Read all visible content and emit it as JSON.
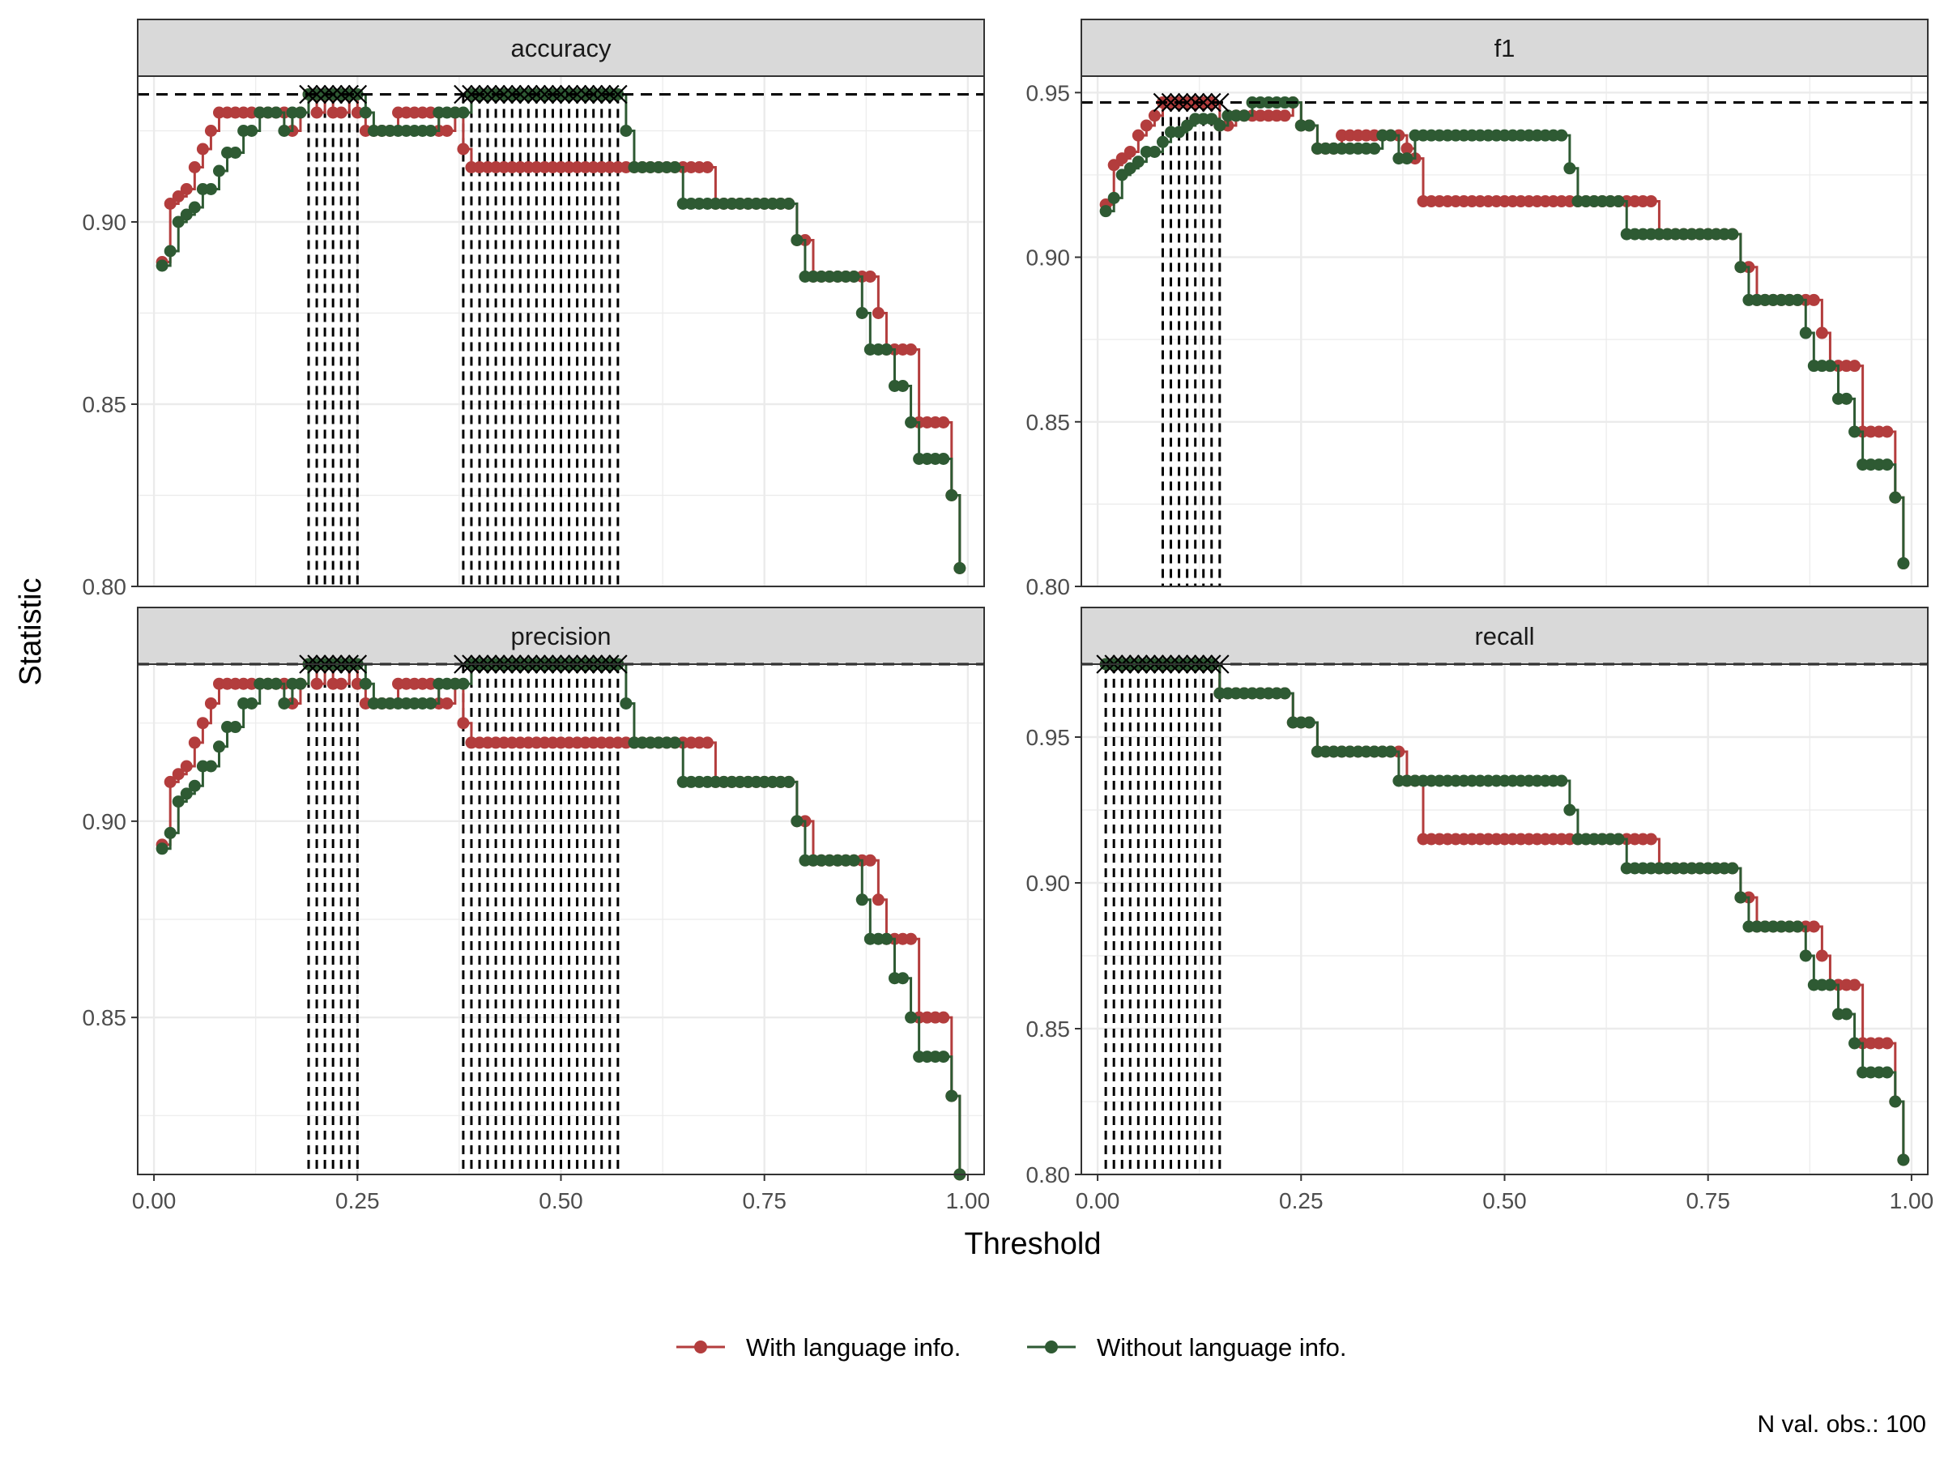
{
  "chart_data": {
    "type": "line",
    "xlabel": "Threshold",
    "ylabel": "Statistic",
    "caption": "N val. obs.: 100",
    "legend_position": "bottom",
    "x_ticks": [
      "0.00",
      "0.25",
      "0.50",
      "0.75",
      "1.00"
    ],
    "x_tick_values": [
      0,
      0.25,
      0.5,
      0.75,
      1.0
    ],
    "xlim": [
      -0.02,
      1.02
    ],
    "colors": {
      "With language info.": "#b33d3d",
      "Without language info.": "#2e5a33",
      "reference": "#000000",
      "strip": "#d9d9d9",
      "grid": "#ebebeb"
    },
    "series_names": [
      "With language info.",
      "Without language info."
    ],
    "panels": [
      {
        "name": "accuracy",
        "ylim": [
          0.8,
          0.94
        ],
        "y_ticks": [
          "0.80",
          "0.85",
          "0.90"
        ],
        "y_tick_values": [
          0.8,
          0.85,
          0.9
        ],
        "max_line": 0.935,
        "optimal_thresholds": [
          [
            0.19,
            0.25
          ],
          [
            0.38,
            0.57
          ]
        ],
        "series": [
          {
            "name": "With language info.",
            "segments": [
              [
                0.01,
                0.889
              ],
              [
                0.02,
                0.905
              ],
              [
                0.03,
                0.907
              ],
              [
                0.04,
                0.909
              ],
              [
                0.05,
                0.915
              ],
              [
                0.06,
                0.92
              ],
              [
                0.07,
                0.925
              ],
              [
                0.08,
                0.93
              ],
              [
                0.17,
                0.925
              ],
              [
                0.18,
                0.93
              ],
              [
                0.19,
                0.935
              ],
              [
                0.2,
                0.93
              ],
              [
                0.21,
                0.935
              ],
              [
                0.22,
                0.93
              ],
              [
                0.24,
                0.935
              ],
              [
                0.25,
                0.93
              ],
              [
                0.26,
                0.925
              ],
              [
                0.3,
                0.93
              ],
              [
                0.35,
                0.925
              ],
              [
                0.37,
                0.93
              ],
              [
                0.38,
                0.92
              ],
              [
                0.39,
                0.915
              ],
              [
                0.69,
                0.905
              ],
              [
                0.79,
                0.895
              ],
              [
                0.81,
                0.885
              ],
              [
                0.89,
                0.875
              ],
              [
                0.9,
                0.865
              ],
              [
                0.94,
                0.845
              ],
              [
                0.98,
                0.825
              ],
              [
                0.99,
                0.805
              ]
            ]
          },
          {
            "name": "Without language info.",
            "segments": [
              [
                0.01,
                0.888
              ],
              [
                0.02,
                0.892
              ],
              [
                0.03,
                0.9
              ],
              [
                0.04,
                0.902
              ],
              [
                0.05,
                0.904
              ],
              [
                0.06,
                0.909
              ],
              [
                0.08,
                0.914
              ],
              [
                0.09,
                0.919
              ],
              [
                0.11,
                0.925
              ],
              [
                0.13,
                0.93
              ],
              [
                0.16,
                0.925
              ],
              [
                0.17,
                0.93
              ],
              [
                0.19,
                0.935
              ],
              [
                0.26,
                0.93
              ],
              [
                0.27,
                0.925
              ],
              [
                0.35,
                0.93
              ],
              [
                0.39,
                0.935
              ],
              [
                0.58,
                0.925
              ],
              [
                0.59,
                0.915
              ],
              [
                0.65,
                0.905
              ],
              [
                0.79,
                0.895
              ],
              [
                0.8,
                0.885
              ],
              [
                0.87,
                0.875
              ],
              [
                0.88,
                0.865
              ],
              [
                0.91,
                0.855
              ],
              [
                0.93,
                0.845
              ],
              [
                0.94,
                0.835
              ],
              [
                0.98,
                0.825
              ],
              [
                0.99,
                0.805
              ]
            ]
          }
        ]
      },
      {
        "name": "f1",
        "ylim": [
          0.8,
          0.955
        ],
        "y_ticks": [
          "0.80",
          "0.85",
          "0.90",
          "0.95"
        ],
        "y_tick_values": [
          0.8,
          0.85,
          0.9,
          0.95
        ],
        "max_line": 0.947,
        "optimal_thresholds": [
          [
            0.08,
            0.15
          ]
        ],
        "series": [
          {
            "name": "With language info.",
            "segments": [
              [
                0.01,
                0.916
              ],
              [
                0.02,
                0.928
              ],
              [
                0.03,
                0.93
              ],
              [
                0.04,
                0.932
              ],
              [
                0.05,
                0.937
              ],
              [
                0.06,
                0.94
              ],
              [
                0.07,
                0.943
              ],
              [
                0.08,
                0.947
              ],
              [
                0.15,
                0.94
              ],
              [
                0.17,
                0.943
              ],
              [
                0.24,
                0.947
              ],
              [
                0.25,
                0.94
              ],
              [
                0.27,
                0.933
              ],
              [
                0.3,
                0.937
              ],
              [
                0.38,
                0.933
              ],
              [
                0.39,
                0.93
              ],
              [
                0.4,
                0.917
              ],
              [
                0.69,
                0.907
              ],
              [
                0.79,
                0.897
              ],
              [
                0.81,
                0.887
              ],
              [
                0.89,
                0.877
              ],
              [
                0.9,
                0.867
              ],
              [
                0.94,
                0.847
              ],
              [
                0.98,
                0.827
              ],
              [
                0.99,
                0.807
              ]
            ]
          },
          {
            "name": "Without language info.",
            "segments": [
              [
                0.01,
                0.914
              ],
              [
                0.02,
                0.918
              ],
              [
                0.03,
                0.925
              ],
              [
                0.04,
                0.927
              ],
              [
                0.05,
                0.929
              ],
              [
                0.06,
                0.932
              ],
              [
                0.08,
                0.935
              ],
              [
                0.09,
                0.938
              ],
              [
                0.11,
                0.94
              ],
              [
                0.12,
                0.942
              ],
              [
                0.15,
                0.94
              ],
              [
                0.16,
                0.943
              ],
              [
                0.19,
                0.947
              ],
              [
                0.25,
                0.94
              ],
              [
                0.27,
                0.933
              ],
              [
                0.35,
                0.937
              ],
              [
                0.37,
                0.93
              ],
              [
                0.39,
                0.937
              ],
              [
                0.58,
                0.927
              ],
              [
                0.59,
                0.917
              ],
              [
                0.65,
                0.907
              ],
              [
                0.79,
                0.897
              ],
              [
                0.8,
                0.887
              ],
              [
                0.87,
                0.877
              ],
              [
                0.88,
                0.867
              ],
              [
                0.91,
                0.857
              ],
              [
                0.93,
                0.847
              ],
              [
                0.94,
                0.837
              ],
              [
                0.98,
                0.827
              ],
              [
                0.99,
                0.807
              ]
            ]
          }
        ]
      },
      {
        "name": "precision",
        "ylim": [
          0.81,
          0.94
        ],
        "y_ticks": [
          "0.85",
          "0.90"
        ],
        "y_tick_values": [
          0.85,
          0.9
        ],
        "max_line": 0.94,
        "optimal_thresholds": [
          [
            0.19,
            0.25
          ],
          [
            0.38,
            0.57
          ]
        ],
        "series": [
          {
            "name": "With language info.",
            "segments": [
              [
                0.01,
                0.894
              ],
              [
                0.02,
                0.91
              ],
              [
                0.03,
                0.912
              ],
              [
                0.04,
                0.914
              ],
              [
                0.05,
                0.92
              ],
              [
                0.06,
                0.925
              ],
              [
                0.07,
                0.93
              ],
              [
                0.08,
                0.935
              ],
              [
                0.17,
                0.93
              ],
              [
                0.18,
                0.935
              ],
              [
                0.19,
                0.94
              ],
              [
                0.2,
                0.935
              ],
              [
                0.21,
                0.94
              ],
              [
                0.22,
                0.935
              ],
              [
                0.24,
                0.94
              ],
              [
                0.25,
                0.935
              ],
              [
                0.26,
                0.93
              ],
              [
                0.3,
                0.935
              ],
              [
                0.35,
                0.93
              ],
              [
                0.37,
                0.935
              ],
              [
                0.38,
                0.925
              ],
              [
                0.39,
                0.92
              ],
              [
                0.69,
                0.91
              ],
              [
                0.79,
                0.9
              ],
              [
                0.81,
                0.89
              ],
              [
                0.89,
                0.88
              ],
              [
                0.9,
                0.87
              ],
              [
                0.94,
                0.85
              ],
              [
                0.98,
                0.83
              ],
              [
                0.99,
                0.81
              ]
            ]
          },
          {
            "name": "Without language info.",
            "segments": [
              [
                0.01,
                0.893
              ],
              [
                0.02,
                0.897
              ],
              [
                0.03,
                0.905
              ],
              [
                0.04,
                0.907
              ],
              [
                0.05,
                0.909
              ],
              [
                0.06,
                0.914
              ],
              [
                0.08,
                0.919
              ],
              [
                0.09,
                0.924
              ],
              [
                0.11,
                0.93
              ],
              [
                0.13,
                0.935
              ],
              [
                0.16,
                0.93
              ],
              [
                0.17,
                0.935
              ],
              [
                0.19,
                0.94
              ],
              [
                0.26,
                0.935
              ],
              [
                0.27,
                0.93
              ],
              [
                0.35,
                0.935
              ],
              [
                0.39,
                0.94
              ],
              [
                0.58,
                0.93
              ],
              [
                0.59,
                0.92
              ],
              [
                0.65,
                0.91
              ],
              [
                0.79,
                0.9
              ],
              [
                0.8,
                0.89
              ],
              [
                0.87,
                0.88
              ],
              [
                0.88,
                0.87
              ],
              [
                0.91,
                0.86
              ],
              [
                0.93,
                0.85
              ],
              [
                0.94,
                0.84
              ],
              [
                0.98,
                0.83
              ],
              [
                0.99,
                0.81
              ]
            ]
          }
        ]
      },
      {
        "name": "recall",
        "ylim": [
          0.8,
          0.975
        ],
        "y_ticks": [
          "0.80",
          "0.85",
          "0.90",
          "0.95"
        ],
        "y_tick_values": [
          0.8,
          0.85,
          0.9,
          0.95
        ],
        "max_line": 0.975,
        "optimal_thresholds": [
          [
            0.01,
            0.15
          ]
        ],
        "series": [
          {
            "name": "With language info.",
            "segments": [
              [
                0.01,
                0.975
              ],
              [
                0.15,
                0.965
              ],
              [
                0.24,
                0.955
              ],
              [
                0.27,
                0.945
              ],
              [
                0.38,
                0.935
              ],
              [
                0.4,
                0.915
              ],
              [
                0.69,
                0.905
              ],
              [
                0.79,
                0.895
              ],
              [
                0.81,
                0.885
              ],
              [
                0.89,
                0.875
              ],
              [
                0.9,
                0.865
              ],
              [
                0.94,
                0.845
              ],
              [
                0.98,
                0.825
              ],
              [
                0.99,
                0.805
              ]
            ]
          },
          {
            "name": "Without language info.",
            "segments": [
              [
                0.01,
                0.975
              ],
              [
                0.15,
                0.965
              ],
              [
                0.24,
                0.955
              ],
              [
                0.27,
                0.945
              ],
              [
                0.37,
                0.935
              ],
              [
                0.58,
                0.925
              ],
              [
                0.59,
                0.915
              ],
              [
                0.65,
                0.905
              ],
              [
                0.79,
                0.895
              ],
              [
                0.8,
                0.885
              ],
              [
                0.87,
                0.875
              ],
              [
                0.88,
                0.865
              ],
              [
                0.91,
                0.855
              ],
              [
                0.93,
                0.845
              ],
              [
                0.94,
                0.835
              ],
              [
                0.98,
                0.825
              ],
              [
                0.99,
                0.805
              ]
            ]
          }
        ]
      }
    ]
  }
}
